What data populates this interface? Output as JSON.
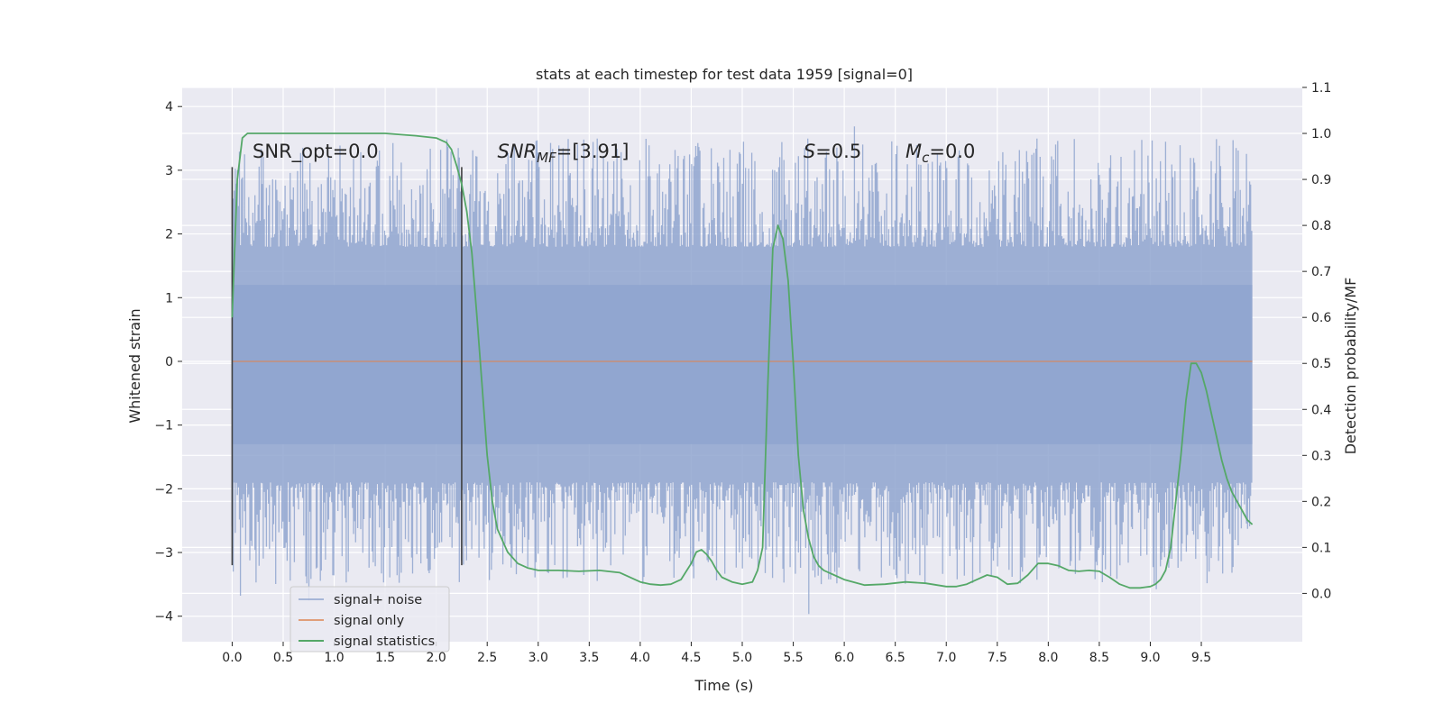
{
  "chart_data": {
    "type": "line",
    "title": "stats at each timestep for test data 1959 [signal=0]",
    "xlabel": "Time (s)",
    "ylabel": "Whitened strain",
    "y2label": "Detection probability/MF",
    "xlim": [
      -0.49,
      10.49
    ],
    "ylim": [
      -4.4,
      4.3
    ],
    "y2lim": [
      -0.105,
      1.1
    ],
    "x_ticks": [
      0.0,
      0.5,
      1.0,
      1.5,
      2.0,
      2.5,
      3.0,
      3.5,
      4.0,
      4.5,
      5.0,
      5.5,
      6.0,
      6.5,
      7.0,
      7.5,
      8.0,
      8.5,
      9.0,
      9.5
    ],
    "x_tick_labels": [
      "0.0",
      "0.5",
      "1.0",
      "1.5",
      "2.0",
      "2.5",
      "3.0",
      "3.5",
      "4.0",
      "4.5",
      "5.0",
      "5.5",
      "6.0",
      "6.5",
      "7.0",
      "7.5",
      "8.0",
      "8.5",
      "9.0",
      "9.5"
    ],
    "y_ticks": [
      -4,
      -3,
      -2,
      -1,
      0,
      1,
      2,
      3,
      4
    ],
    "y_tick_labels": [
      "−4",
      "−3",
      "−2",
      "−1",
      "0",
      "1",
      "2",
      "3",
      "4"
    ],
    "y2_ticks": [
      0.0,
      0.1,
      0.2,
      0.3,
      0.4,
      0.5,
      0.6,
      0.7,
      0.8,
      0.9,
      1.0,
      1.1
    ],
    "y2_tick_labels": [
      "0.0",
      "0.1",
      "0.2",
      "0.3",
      "0.4",
      "0.5",
      "0.6",
      "0.7",
      "0.8",
      "0.9",
      "1.0",
      "1.1"
    ],
    "grid": true,
    "legend_position": "lower-left",
    "colors": {
      "background": "#eaeaf2",
      "grid": "#ffffff",
      "noise": "#8fa4cf",
      "signal_only": "#dd8452",
      "statistics": "#55a868",
      "marker": "#404040"
    },
    "series": [
      {
        "name": "signal+ noise",
        "axis": "left",
        "style": "dense-noise",
        "x_range": [
          0.0,
          10.0
        ],
        "core_range": [
          -1.3,
          1.2
        ],
        "extremes": [
          -4.05,
          3.92
        ]
      },
      {
        "name": "signal only",
        "axis": "left",
        "x": [
          0.0,
          10.0
        ],
        "y": [
          0.0,
          0.0
        ]
      },
      {
        "name": "signal statistics",
        "axis": "right",
        "x": [
          0.0,
          0.05,
          0.1,
          0.15,
          0.2,
          0.3,
          0.5,
          1.0,
          1.5,
          1.8,
          2.0,
          2.1,
          2.15,
          2.2,
          2.25,
          2.3,
          2.35,
          2.4,
          2.45,
          2.5,
          2.55,
          2.6,
          2.7,
          2.8,
          2.9,
          3.0,
          3.2,
          3.4,
          3.6,
          3.8,
          4.0,
          4.1,
          4.2,
          4.3,
          4.4,
          4.5,
          4.55,
          4.6,
          4.65,
          4.7,
          4.75,
          4.8,
          4.9,
          5.0,
          5.1,
          5.15,
          5.2,
          5.25,
          5.3,
          5.35,
          5.4,
          5.45,
          5.5,
          5.55,
          5.6,
          5.65,
          5.7,
          5.75,
          5.8,
          5.85,
          5.9,
          6.0,
          6.2,
          6.4,
          6.6,
          6.8,
          7.0,
          7.1,
          7.2,
          7.3,
          7.4,
          7.5,
          7.6,
          7.7,
          7.8,
          7.9,
          8.0,
          8.1,
          8.2,
          8.3,
          8.4,
          8.5,
          8.6,
          8.7,
          8.8,
          8.9,
          9.0,
          9.05,
          9.1,
          9.15,
          9.2,
          9.25,
          9.3,
          9.35,
          9.4,
          9.45,
          9.5,
          9.55,
          9.6,
          9.65,
          9.7,
          9.75,
          9.8,
          9.85,
          9.9,
          9.95,
          10.0
        ],
        "y": [
          0.6,
          0.9,
          0.99,
          1.0,
          1.0,
          1.0,
          1.0,
          1.0,
          1.0,
          0.995,
          0.99,
          0.98,
          0.965,
          0.93,
          0.89,
          0.83,
          0.74,
          0.6,
          0.45,
          0.3,
          0.2,
          0.14,
          0.09,
          0.065,
          0.055,
          0.05,
          0.05,
          0.048,
          0.05,
          0.045,
          0.025,
          0.02,
          0.018,
          0.02,
          0.03,
          0.065,
          0.09,
          0.095,
          0.085,
          0.07,
          0.05,
          0.035,
          0.025,
          0.02,
          0.025,
          0.05,
          0.1,
          0.45,
          0.75,
          0.8,
          0.77,
          0.68,
          0.5,
          0.3,
          0.18,
          0.12,
          0.08,
          0.06,
          0.05,
          0.045,
          0.04,
          0.03,
          0.018,
          0.02,
          0.025,
          0.022,
          0.015,
          0.015,
          0.02,
          0.03,
          0.04,
          0.035,
          0.02,
          0.022,
          0.04,
          0.065,
          0.065,
          0.06,
          0.05,
          0.048,
          0.05,
          0.048,
          0.035,
          0.02,
          0.012,
          0.012,
          0.015,
          0.02,
          0.03,
          0.05,
          0.1,
          0.2,
          0.3,
          0.42,
          0.5,
          0.5,
          0.48,
          0.44,
          0.39,
          0.34,
          0.29,
          0.25,
          0.22,
          0.2,
          0.18,
          0.16,
          0.15
        ]
      }
    ],
    "markers": [
      {
        "x": 0.0,
        "y": [
          -3.2,
          3.05
        ]
      },
      {
        "x": 2.25,
        "y": [
          -3.2,
          3.05
        ]
      }
    ],
    "annotations": [
      {
        "id": "snr-opt",
        "text": "SNR_opt=0.0",
        "x": 0.2,
        "y": 3.2
      },
      {
        "id": "snr-mf",
        "text": "SNR",
        "sub": "MF",
        "suffix": "=[3.91]",
        "x": 2.6,
        "y": 3.2
      },
      {
        "id": "s-value",
        "text": "S",
        "suffix": "=0.5",
        "x": 5.6,
        "y": 3.2
      },
      {
        "id": "mc-value",
        "text": "M",
        "sub": "c",
        "suffix": "=0.0",
        "x": 6.6,
        "y": 3.2
      }
    ]
  }
}
